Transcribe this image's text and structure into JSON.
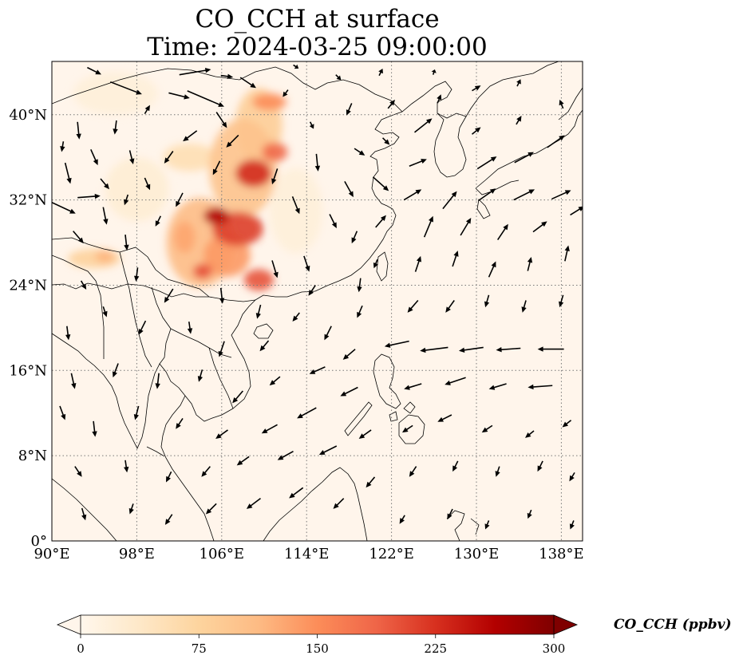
{
  "title": {
    "line1": "CO_CCH at surface",
    "line2": "Time: 2024-03-25 09:00:00"
  },
  "map": {
    "extent": {
      "lon_min": 90,
      "lon_max": 140,
      "lat_min": 0,
      "lat_max": 45
    },
    "lon_ticks": [
      {
        "value": 90,
        "label": "90°E"
      },
      {
        "value": 98,
        "label": "98°E"
      },
      {
        "value": 106,
        "label": "106°E"
      },
      {
        "value": 114,
        "label": "114°E"
      },
      {
        "value": 122,
        "label": "122°E"
      },
      {
        "value": 130,
        "label": "130°E"
      },
      {
        "value": 138,
        "label": "138°E"
      }
    ],
    "lat_ticks": [
      {
        "value": 0,
        "label": "0°"
      },
      {
        "value": 8,
        "label": "8°N"
      },
      {
        "value": 16,
        "label": "16°N"
      },
      {
        "value": 24,
        "label": "24°N"
      },
      {
        "value": 32,
        "label": "32°N"
      },
      {
        "value": 40,
        "label": "40°N"
      }
    ],
    "gridlines": "dotted",
    "background_color": "#fff5eb"
  },
  "colorbar": {
    "label": "CO_CCH (ppbv)",
    "min": 0,
    "max": 300,
    "ticks": [
      0,
      75,
      150,
      225,
      300
    ],
    "extend": "both",
    "colormap": "OrRd",
    "colors": [
      "#fff7ec",
      "#fee8c8",
      "#fdd49e",
      "#fdbb84",
      "#fc8d59",
      "#ef6548",
      "#d7301f",
      "#b30000",
      "#7f0000"
    ]
  },
  "concentration_blobs": [
    {
      "lon": 104,
      "lat": 28,
      "rx": 3.2,
      "ry": 4.2,
      "value": 110
    },
    {
      "lon": 108,
      "lat": 35,
      "rx": 3.2,
      "ry": 4.6,
      "value": 100
    },
    {
      "lon": 107.5,
      "lat": 29.3,
      "rx": 2.4,
      "ry": 1.6,
      "value": 215
    },
    {
      "lon": 105.5,
      "lat": 30.5,
      "rx": 1.2,
      "ry": 0.8,
      "value": 265
    },
    {
      "lon": 109,
      "lat": 34.5,
      "rx": 1.7,
      "ry": 1.3,
      "value": 230
    },
    {
      "lon": 109.5,
      "lat": 39,
      "rx": 2.2,
      "ry": 3.5,
      "value": 85
    },
    {
      "lon": 111,
      "lat": 36.5,
      "rx": 1.2,
      "ry": 0.9,
      "value": 185
    },
    {
      "lon": 110.5,
      "lat": 41.2,
      "rx": 1.6,
      "ry": 0.8,
      "value": 150
    },
    {
      "lon": 106.5,
      "lat": 26.8,
      "rx": 2.2,
      "ry": 2.0,
      "value": 140
    },
    {
      "lon": 109.5,
      "lat": 24.5,
      "rx": 1.4,
      "ry": 1.0,
      "value": 200
    },
    {
      "lon": 104.2,
      "lat": 25.3,
      "rx": 0.9,
      "ry": 0.7,
      "value": 205
    },
    {
      "lon": 102.5,
      "lat": 28.5,
      "rx": 1.0,
      "ry": 1.5,
      "value": 130
    },
    {
      "lon": 94,
      "lat": 26.5,
      "rx": 2.5,
      "ry": 0.9,
      "value": 80
    },
    {
      "lon": 95,
      "lat": 26.7,
      "rx": 0.9,
      "ry": 0.6,
      "value": 120
    },
    {
      "lon": 103,
      "lat": 36,
      "rx": 2.5,
      "ry": 1.3,
      "value": 55
    },
    {
      "lon": 98,
      "lat": 33,
      "rx": 3.0,
      "ry": 3.0,
      "value": 25
    },
    {
      "lon": 113,
      "lat": 31,
      "rx": 2.5,
      "ry": 4.0,
      "value": 20
    },
    {
      "lon": 96,
      "lat": 42,
      "rx": 4.0,
      "ry": 2.0,
      "value": 20
    }
  ],
  "wind_vectors": [
    {
      "lon": 94,
      "lat": 44.1,
      "u": 0.8,
      "v": -0.4
    },
    {
      "lon": 103.5,
      "lat": 44,
      "u": 1.8,
      "v": 0.3
    },
    {
      "lon": 106.5,
      "lat": 43.6,
      "u": 0.7,
      "v": -0.1
    },
    {
      "lon": 108.5,
      "lat": 43,
      "u": 0.9,
      "v": -0.6
    },
    {
      "lon": 97,
      "lat": 42.5,
      "u": 1.8,
      "v": -0.7
    },
    {
      "lon": 102,
      "lat": 41.8,
      "u": 1.2,
      "v": -0.3
    },
    {
      "lon": 104.5,
      "lat": 41.5,
      "u": 2.1,
      "v": -0.9
    },
    {
      "lon": 99,
      "lat": 40.5,
      "u": 0.3,
      "v": 0.5
    },
    {
      "lon": 106,
      "lat": 39.5,
      "u": 0.6,
      "v": -0.9
    },
    {
      "lon": 92.5,
      "lat": 38.5,
      "u": 0.1,
      "v": -1.0
    },
    {
      "lon": 96,
      "lat": 38.8,
      "u": -0.1,
      "v": -0.8
    },
    {
      "lon": 103,
      "lat": 38,
      "u": -0.8,
      "v": -0.6
    },
    {
      "lon": 107,
      "lat": 37.5,
      "u": -0.7,
      "v": -0.7
    },
    {
      "lon": 91,
      "lat": 37,
      "u": -0.1,
      "v": -0.6
    },
    {
      "lon": 94,
      "lat": 36,
      "u": 0.4,
      "v": -0.9
    },
    {
      "lon": 97.5,
      "lat": 36,
      "u": 0.2,
      "v": -0.8
    },
    {
      "lon": 101,
      "lat": 36,
      "u": -0.5,
      "v": -0.7
    },
    {
      "lon": 105.5,
      "lat": 35,
      "u": -0.4,
      "v": -0.8
    },
    {
      "lon": 111,
      "lat": 34.2,
      "u": -0.3,
      "v": -0.9
    },
    {
      "lon": 115,
      "lat": 35.5,
      "u": 0.1,
      "v": -1.0
    },
    {
      "lon": 91.5,
      "lat": 34.5,
      "u": 0.3,
      "v": -1.2
    },
    {
      "lon": 95,
      "lat": 33.5,
      "u": 0.5,
      "v": -0.6
    },
    {
      "lon": 99,
      "lat": 33.5,
      "u": 0.3,
      "v": -0.7
    },
    {
      "lon": 102,
      "lat": 32,
      "u": -0.4,
      "v": -0.8
    },
    {
      "lon": 93.5,
      "lat": 32.3,
      "u": 1.3,
      "v": 0.1
    },
    {
      "lon": 97,
      "lat": 32,
      "u": -0.2,
      "v": -0.6
    },
    {
      "lon": 91,
      "lat": 31.3,
      "u": 1.5,
      "v": -0.7
    },
    {
      "lon": 95,
      "lat": 30.5,
      "u": 0.2,
      "v": -1.0
    },
    {
      "lon": 100,
      "lat": 30,
      "u": -0.3,
      "v": -0.6
    },
    {
      "lon": 92.5,
      "lat": 28.5,
      "u": 0.6,
      "v": -0.7
    },
    {
      "lon": 97,
      "lat": 28,
      "u": 0.1,
      "v": -0.9
    },
    {
      "lon": 113,
      "lat": 31.5,
      "u": 0.4,
      "v": -1.0
    },
    {
      "lon": 116.5,
      "lat": 30,
      "u": 0.4,
      "v": -0.8
    },
    {
      "lon": 118.5,
      "lat": 28.5,
      "u": -0.3,
      "v": -0.7
    },
    {
      "lon": 114,
      "lat": 26,
      "u": 0.3,
      "v": -0.9
    },
    {
      "lon": 111,
      "lat": 25.5,
      "u": 0.3,
      "v": -1.0
    },
    {
      "lon": 119,
      "lat": 24,
      "u": -0.1,
      "v": -0.8
    },
    {
      "lon": 93,
      "lat": 24,
      "u": 0.3,
      "v": -0.5
    },
    {
      "lon": 98,
      "lat": 25,
      "u": -0.1,
      "v": -0.8
    },
    {
      "lon": 101,
      "lat": 23,
      "u": -0.5,
      "v": -0.8
    },
    {
      "lon": 106,
      "lat": 23,
      "u": 0.1,
      "v": -0.9
    },
    {
      "lon": 109.5,
      "lat": 21.5,
      "u": -0.2,
      "v": -0.8
    },
    {
      "lon": 113,
      "lat": 21,
      "u": -0.4,
      "v": -0.5
    },
    {
      "lon": 116,
      "lat": 19.5,
      "u": -0.4,
      "v": -0.8
    },
    {
      "lon": 119,
      "lat": 21.5,
      "u": -0.3,
      "v": -0.7
    },
    {
      "lon": 95,
      "lat": 21.5,
      "u": 0.2,
      "v": -0.6
    },
    {
      "lon": 98.5,
      "lat": 20,
      "u": -0.4,
      "v": -0.8
    },
    {
      "lon": 103,
      "lat": 20,
      "u": 0.1,
      "v": -0.7
    },
    {
      "lon": 106,
      "lat": 18,
      "u": -0.3,
      "v": -0.9
    },
    {
      "lon": 110,
      "lat": 18.3,
      "u": -0.5,
      "v": -0.6
    },
    {
      "lon": 91.5,
      "lat": 19.5,
      "u": 0.1,
      "v": -0.8
    },
    {
      "lon": 92,
      "lat": 15,
      "u": 0.2,
      "v": -0.9
    },
    {
      "lon": 96,
      "lat": 16,
      "u": -0.3,
      "v": -0.8
    },
    {
      "lon": 100,
      "lat": 15,
      "u": -0.1,
      "v": -0.9
    },
    {
      "lon": 104,
      "lat": 15.5,
      "u": -0.2,
      "v": -0.7
    },
    {
      "lon": 107.5,
      "lat": 13.5,
      "u": -0.6,
      "v": -0.7
    },
    {
      "lon": 111,
      "lat": 15,
      "u": -0.6,
      "v": -0.5
    },
    {
      "lon": 115,
      "lat": 16,
      "u": -0.9,
      "v": -0.4
    },
    {
      "lon": 118,
      "lat": 14,
      "u": -1.0,
      "v": -0.5
    },
    {
      "lon": 114,
      "lat": 12,
      "u": -1.1,
      "v": -0.6
    },
    {
      "lon": 110.5,
      "lat": 10.5,
      "u": -0.9,
      "v": -0.5
    },
    {
      "lon": 106,
      "lat": 10,
      "u": -0.7,
      "v": -0.5
    },
    {
      "lon": 102,
      "lat": 11,
      "u": -0.4,
      "v": -0.6
    },
    {
      "lon": 98,
      "lat": 12,
      "u": -0.2,
      "v": -0.8
    },
    {
      "lon": 94,
      "lat": 10.5,
      "u": 0.1,
      "v": -0.9
    },
    {
      "lon": 91,
      "lat": 12,
      "u": 0.3,
      "v": -0.8
    },
    {
      "lon": 92.5,
      "lat": 6.5,
      "u": 0.4,
      "v": -0.6
    },
    {
      "lon": 97,
      "lat": 7,
      "u": 0.1,
      "v": -0.7
    },
    {
      "lon": 101,
      "lat": 6,
      "u": -0.3,
      "v": -0.6
    },
    {
      "lon": 104.5,
      "lat": 6.5,
      "u": -0.5,
      "v": -0.6
    },
    {
      "lon": 108,
      "lat": 7.5,
      "u": -0.7,
      "v": -0.5
    },
    {
      "lon": 112,
      "lat": 8,
      "u": -0.9,
      "v": -0.5
    },
    {
      "lon": 116,
      "lat": 8.5,
      "u": -1.0,
      "v": -0.5
    },
    {
      "lon": 119.5,
      "lat": 10,
      "u": -0.7,
      "v": -0.5
    },
    {
      "lon": 93,
      "lat": 2.5,
      "u": 0.2,
      "v": -0.7
    },
    {
      "lon": 97.5,
      "lat": 3,
      "u": -0.2,
      "v": -0.6
    },
    {
      "lon": 101,
      "lat": 2,
      "u": -0.4,
      "v": -0.6
    },
    {
      "lon": 105,
      "lat": 3,
      "u": -0.6,
      "v": -0.6
    },
    {
      "lon": 109,
      "lat": 3.5,
      "u": -0.8,
      "v": -0.6
    },
    {
      "lon": 113,
      "lat": 4.5,
      "u": -0.8,
      "v": -0.6
    },
    {
      "lon": 117,
      "lat": 3.5,
      "u": -0.6,
      "v": -0.6
    },
    {
      "lon": 120,
      "lat": 5.5,
      "u": -0.5,
      "v": -0.6
    },
    {
      "lon": 124,
      "lat": 6.5,
      "u": -0.4,
      "v": -0.6
    },
    {
      "lon": 128,
      "lat": 7,
      "u": -0.3,
      "v": -0.6
    },
    {
      "lon": 132,
      "lat": 6.5,
      "u": -0.2,
      "v": -0.6
    },
    {
      "lon": 136,
      "lat": 7,
      "u": -0.3,
      "v": -0.6
    },
    {
      "lon": 139,
      "lat": 6,
      "u": -0.3,
      "v": -0.5
    },
    {
      "lon": 123,
      "lat": 2,
      "u": -0.3,
      "v": -0.5
    },
    {
      "lon": 127.5,
      "lat": 2.5,
      "u": -0.3,
      "v": -0.6
    },
    {
      "lon": 131,
      "lat": 1.5,
      "u": -0.2,
      "v": -0.5
    },
    {
      "lon": 135,
      "lat": 2.5,
      "u": -0.2,
      "v": -0.5
    },
    {
      "lon": 139,
      "lat": 1.5,
      "u": -0.2,
      "v": -0.5
    },
    {
      "lon": 123.5,
      "lat": 10.5,
      "u": -0.6,
      "v": -0.4
    },
    {
      "lon": 127,
      "lat": 11.5,
      "u": -0.8,
      "v": -0.4
    },
    {
      "lon": 131,
      "lat": 10.5,
      "u": -0.6,
      "v": -0.4
    },
    {
      "lon": 135,
      "lat": 10,
      "u": -0.5,
      "v": -0.4
    },
    {
      "lon": 138.5,
      "lat": 11,
      "u": -0.5,
      "v": -0.4
    },
    {
      "lon": 124,
      "lat": 14.5,
      "u": -1.0,
      "v": -0.3
    },
    {
      "lon": 128,
      "lat": 15,
      "u": -1.2,
      "v": -0.4
    },
    {
      "lon": 132,
      "lat": 14.5,
      "u": -1.0,
      "v": -0.3
    },
    {
      "lon": 136,
      "lat": 14.5,
      "u": -1.4,
      "v": -0.1
    },
    {
      "lon": 122.5,
      "lat": 18.5,
      "u": -1.4,
      "v": -0.3
    },
    {
      "lon": 126,
      "lat": 18,
      "u": -1.6,
      "v": -0.2
    },
    {
      "lon": 129.5,
      "lat": 18,
      "u": -1.4,
      "v": -0.2
    },
    {
      "lon": 133,
      "lat": 18,
      "u": -1.4,
      "v": -0.1
    },
    {
      "lon": 137,
      "lat": 18,
      "u": -1.5,
      "v": 0.0
    },
    {
      "lon": 124,
      "lat": 22,
      "u": -0.6,
      "v": -0.7
    },
    {
      "lon": 127.5,
      "lat": 22,
      "u": -0.5,
      "v": -0.7
    },
    {
      "lon": 131,
      "lat": 22.5,
      "u": -0.2,
      "v": -0.7
    },
    {
      "lon": 134.5,
      "lat": 22,
      "u": -0.2,
      "v": -0.7
    },
    {
      "lon": 138,
      "lat": 22.5,
      "u": -0.2,
      "v": -0.7
    },
    {
      "lon": 124.5,
      "lat": 26,
      "u": 0.3,
      "v": 0.9
    },
    {
      "lon": 128,
      "lat": 26.5,
      "u": 0.3,
      "v": 0.9
    },
    {
      "lon": 131.5,
      "lat": 25.5,
      "u": 0.4,
      "v": 0.9
    },
    {
      "lon": 135,
      "lat": 26,
      "u": 0.2,
      "v": 0.8
    },
    {
      "lon": 138.5,
      "lat": 27,
      "u": 0.2,
      "v": 0.9
    },
    {
      "lon": 125.5,
      "lat": 29.5,
      "u": 0.5,
      "v": 1.2
    },
    {
      "lon": 129,
      "lat": 29.5,
      "u": 0.6,
      "v": 1.0
    },
    {
      "lon": 132.5,
      "lat": 29,
      "u": 0.6,
      "v": 0.9
    },
    {
      "lon": 136,
      "lat": 29.5,
      "u": 0.8,
      "v": 0.6
    },
    {
      "lon": 139.5,
      "lat": 31,
      "u": 0.8,
      "v": 0.5
    },
    {
      "lon": 121,
      "lat": 30,
      "u": 0.6,
      "v": 0.7
    },
    {
      "lon": 124,
      "lat": 32.5,
      "u": 1.0,
      "v": 0.6
    },
    {
      "lon": 127.5,
      "lat": 32,
      "u": 0.8,
      "v": 1.0
    },
    {
      "lon": 131,
      "lat": 32.5,
      "u": 1.0,
      "v": 0.7
    },
    {
      "lon": 134.5,
      "lat": 32.5,
      "u": 1.2,
      "v": 0.6
    },
    {
      "lon": 138,
      "lat": 32.5,
      "u": 1.1,
      "v": 0.5
    },
    {
      "lon": 118,
      "lat": 33,
      "u": 0.5,
      "v": -0.9
    },
    {
      "lon": 121,
      "lat": 33.5,
      "u": 0.9,
      "v": -0.8
    },
    {
      "lon": 124.5,
      "lat": 35.5,
      "u": 1.0,
      "v": 0.4
    },
    {
      "lon": 131,
      "lat": 35.5,
      "u": 1.1,
      "v": 0.7
    },
    {
      "lon": 134.5,
      "lat": 36,
      "u": 1.1,
      "v": 0.6
    },
    {
      "lon": 137.5,
      "lat": 37.5,
      "u": 1.0,
      "v": 0.7
    },
    {
      "lon": 119,
      "lat": 36.5,
      "u": 0.6,
      "v": -0.4
    },
    {
      "lon": 121.5,
      "lat": 37.5,
      "u": 0.4,
      "v": -0.4
    },
    {
      "lon": 125,
      "lat": 39,
      "u": 1.0,
      "v": 0.8
    },
    {
      "lon": 130,
      "lat": 38.5,
      "u": 0.5,
      "v": 0.4
    },
    {
      "lon": 134,
      "lat": 39.5,
      "u": 0.3,
      "v": 0.5
    },
    {
      "lon": 138,
      "lat": 41,
      "u": -0.2,
      "v": 0.5
    },
    {
      "lon": 118,
      "lat": 40.5,
      "u": -0.3,
      "v": -0.7
    },
    {
      "lon": 122,
      "lat": 41,
      "u": 0.4,
      "v": 0.5
    },
    {
      "lon": 126.5,
      "lat": 41.5,
      "u": 0.2,
      "v": 0.5
    },
    {
      "lon": 130,
      "lat": 42.5,
      "u": 0.5,
      "v": 0.3
    },
    {
      "lon": 134,
      "lat": 43,
      "u": 0.2,
      "v": 0.4
    },
    {
      "lon": 121,
      "lat": 44,
      "u": 0.2,
      "v": 0.4
    },
    {
      "lon": 126,
      "lat": 44,
      "u": 0.1,
      "v": 0.3
    },
    {
      "lon": 112,
      "lat": 42,
      "u": -0.3,
      "v": -0.4
    },
    {
      "lon": 114.5,
      "lat": 39,
      "u": 0.2,
      "v": -0.4
    },
    {
      "lon": 117,
      "lat": 43.5,
      "u": 0.3,
      "v": -0.3
    },
    {
      "lon": 113,
      "lat": 44.5,
      "u": 0.3,
      "v": -0.2
    },
    {
      "lon": 120.5,
      "lat": 26,
      "u": -0.2,
      "v": -0.5
    },
    {
      "lon": 118,
      "lat": 17.5,
      "u": -0.7,
      "v": -0.6
    },
    {
      "lon": 114.5,
      "lat": 23.5,
      "u": -0.4,
      "v": -0.6
    }
  ]
}
